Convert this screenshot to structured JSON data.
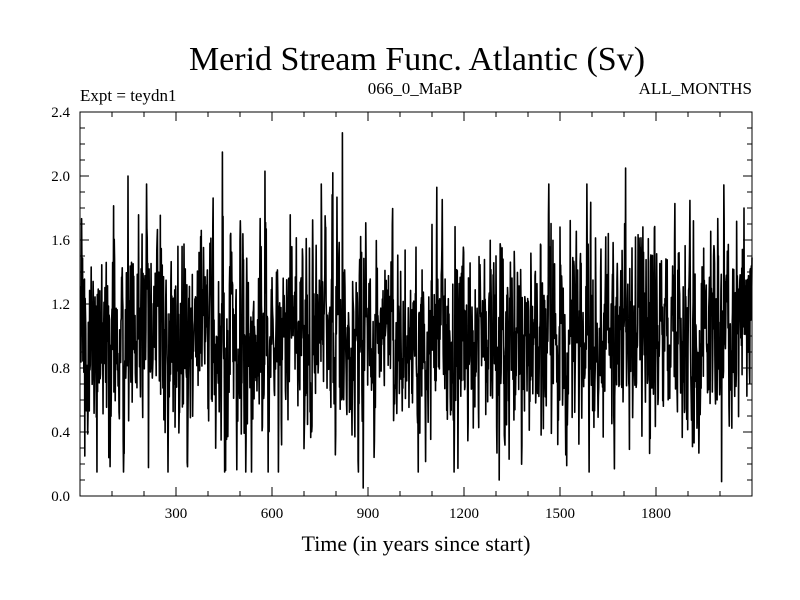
{
  "chart_data": {
    "type": "line",
    "title": "Merid Stream Func. Atlantic (Sv)",
    "subtitle_left": "Expt = teydn1",
    "subtitle_center": "066_0_MaBP",
    "subtitle_right": "ALL_MONTHS",
    "xlabel": "Time (in years since start)",
    "ylabel": "",
    "xlim": [
      0,
      2100
    ],
    "ylim": [
      0.0,
      2.4
    ],
    "xticks": [
      300,
      600,
      900,
      1200,
      1500,
      1800
    ],
    "xtick_labels": [
      "300",
      "600",
      "900",
      "1200",
      "1500",
      "1800"
    ],
    "yticks": [
      0.0,
      0.4,
      0.8,
      1.2,
      1.6,
      2.0,
      2.4
    ],
    "ytick_labels": [
      "0.0",
      "0.4",
      "0.8",
      "1.2",
      "1.6",
      "2.0",
      "2.4"
    ],
    "x_minor_step": 100,
    "y_minor_step": 0.1,
    "grid": false,
    "colors": {
      "line": "#000000",
      "axes": "#000000",
      "background": "#ffffff"
    },
    "series": [
      {
        "name": "Merid Stream Func. Atlantic",
        "x_start": 1,
        "x_step": 1,
        "count": 2100,
        "mean": 1.0,
        "std": 0.33,
        "seed": 7
      }
    ],
    "notable_extremes": [
      {
        "x": 15,
        "y": 0.25
      },
      {
        "x": 90,
        "y": 0.24
      },
      {
        "x": 150,
        "y": 2.0
      },
      {
        "x": 445,
        "y": 2.15
      },
      {
        "x": 455,
        "y": 0.16
      },
      {
        "x": 578,
        "y": 2.03
      },
      {
        "x": 790,
        "y": 2.02
      },
      {
        "x": 820,
        "y": 2.27
      },
      {
        "x": 885,
        "y": 0.05
      },
      {
        "x": 1170,
        "y": 0.42
      },
      {
        "x": 1310,
        "y": 0.1
      },
      {
        "x": 1670,
        "y": 0.17
      },
      {
        "x": 1705,
        "y": 2.05
      },
      {
        "x": 2005,
        "y": 0.09
      },
      {
        "x": 2075,
        "y": 1.8
      }
    ]
  }
}
